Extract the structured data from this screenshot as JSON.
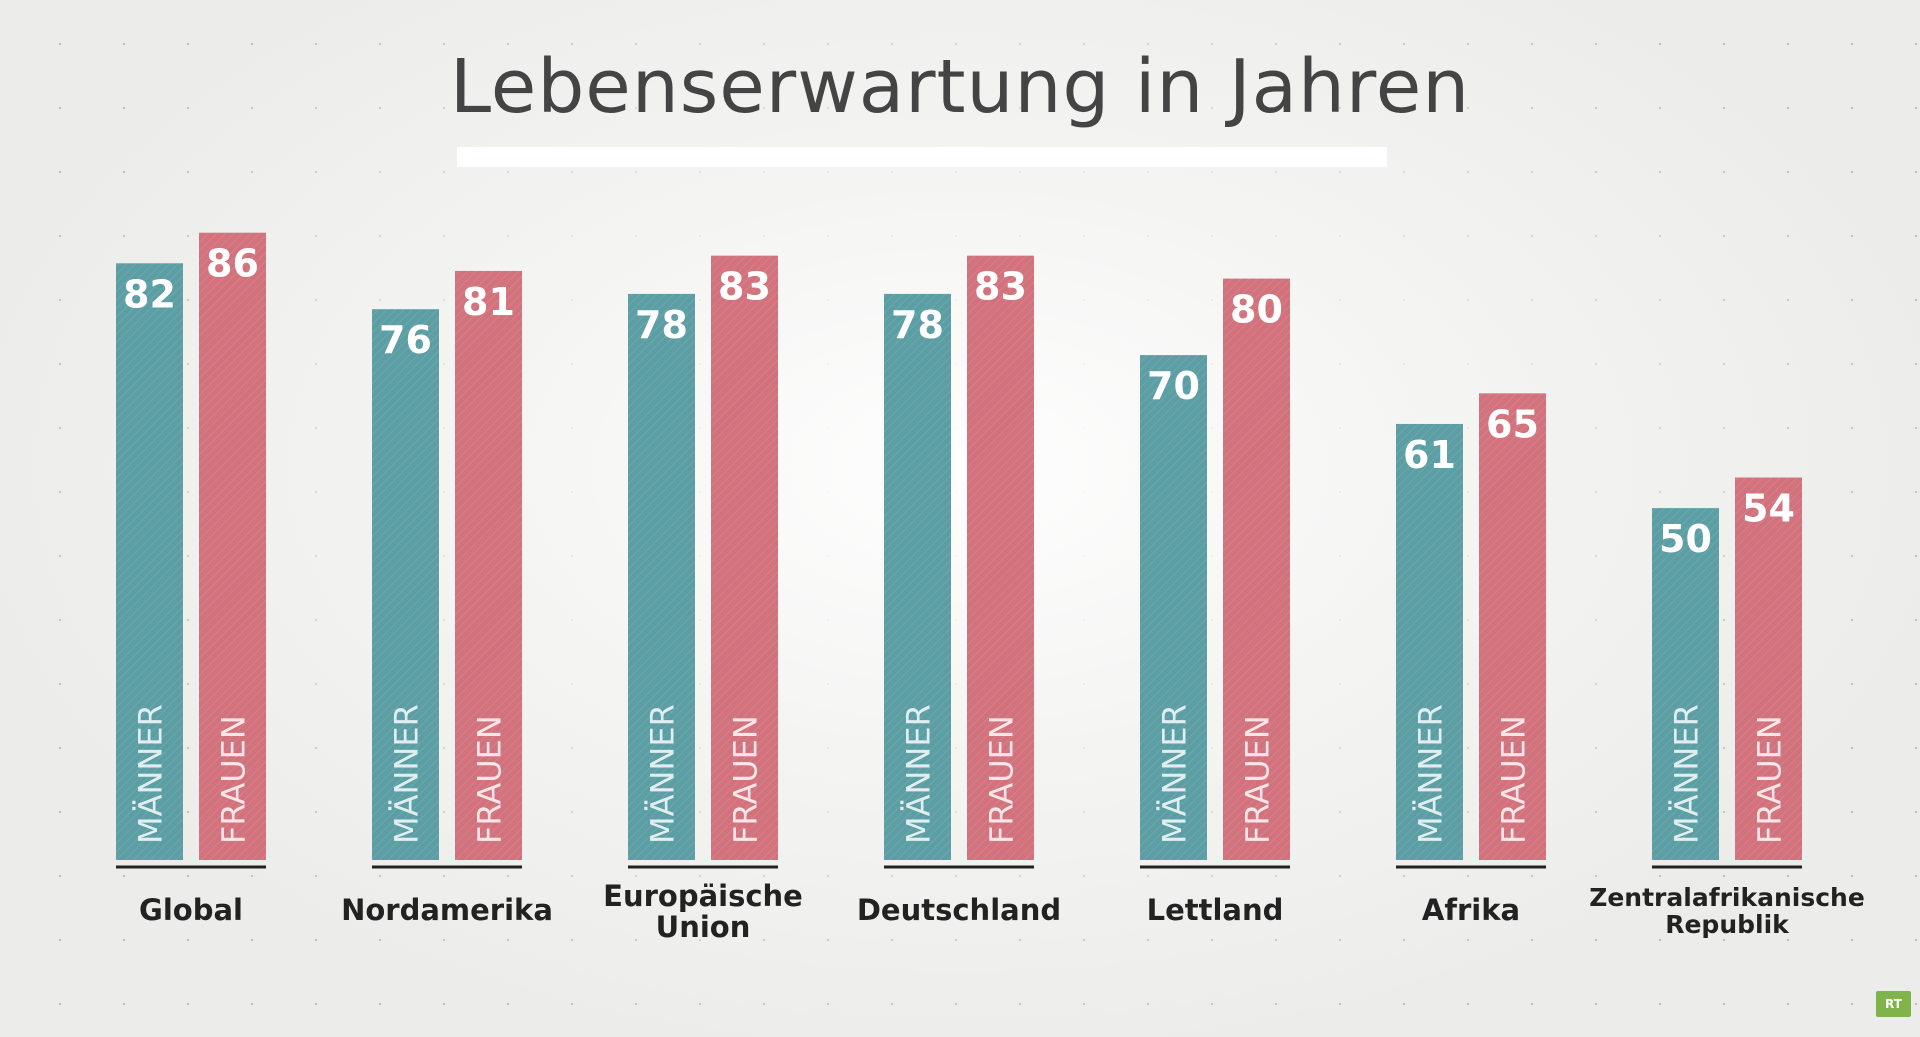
{
  "colors": {
    "maenner": "#5b9ea4",
    "frauen": "#d2727c",
    "bar_label": "#ffffff",
    "category_label": "#222222",
    "baseline": "#222222"
  },
  "logo_text": "RT",
  "chart_data": {
    "type": "bar",
    "title": "Lebenserwartung in Jahren",
    "xlabel": "",
    "ylabel": "",
    "ylim": [
      0,
      100
    ],
    "grid": false,
    "legend": "none (series names printed inside bars)",
    "categories": [
      "Global",
      "Nordamerika",
      "Europäische\nUnion",
      "Deutschland",
      "Lettland",
      "Afrika",
      "Zentralafrikanische\nRepublik"
    ],
    "series": [
      {
        "name": "MÄNNER",
        "color": "#5b9ea4",
        "values": [
          82,
          76,
          78,
          78,
          70,
          61,
          50
        ]
      },
      {
        "name": "FRAUEN",
        "color": "#d2727c",
        "values": [
          86,
          81,
          83,
          83,
          80,
          65,
          54
        ]
      }
    ]
  }
}
